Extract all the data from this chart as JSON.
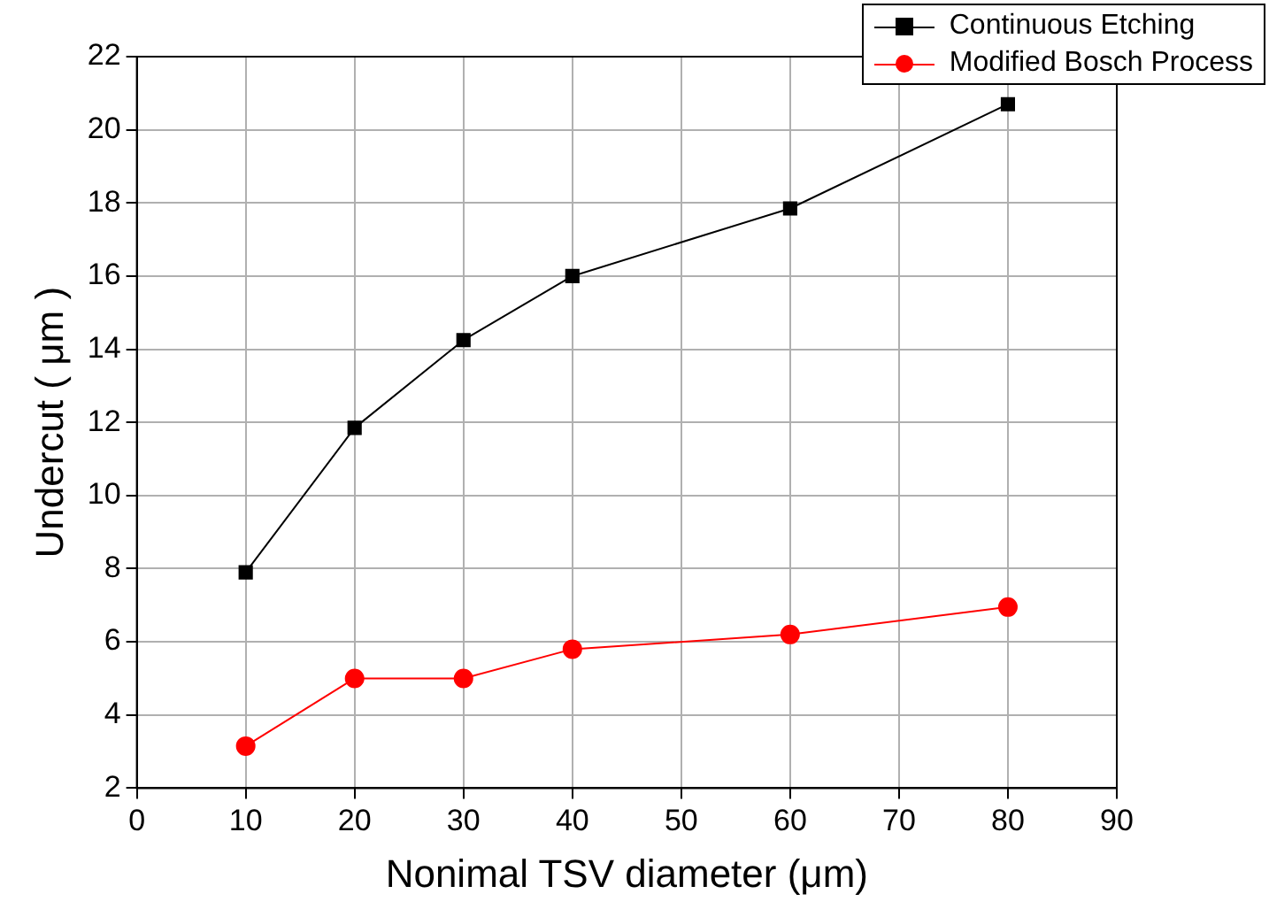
{
  "chart_data": {
    "type": "line",
    "xlabel": "Nonimal TSV diameter (μm)",
    "ylabel": "Undercut ( μm )",
    "x": [
      10,
      20,
      30,
      40,
      60,
      80
    ],
    "series": [
      {
        "name": "Continuous Etching",
        "color": "#000000",
        "marker": "square",
        "values": [
          7.9,
          11.85,
          14.25,
          16.0,
          17.85,
          20.7
        ]
      },
      {
        "name": "Modified Bosch Process",
        "color": "#ff0000",
        "marker": "circle",
        "values": [
          3.15,
          5.0,
          5.0,
          5.8,
          6.2,
          6.95
        ]
      }
    ],
    "xlim": [
      0,
      90
    ],
    "xticks": [
      0,
      10,
      20,
      30,
      40,
      50,
      60,
      70,
      80,
      90
    ],
    "ylim": [
      2,
      22
    ],
    "yticks": [
      2,
      4,
      6,
      8,
      10,
      12,
      14,
      16,
      18,
      20,
      22
    ],
    "grid": true,
    "legend": "top right",
    "line_style": "solid"
  }
}
